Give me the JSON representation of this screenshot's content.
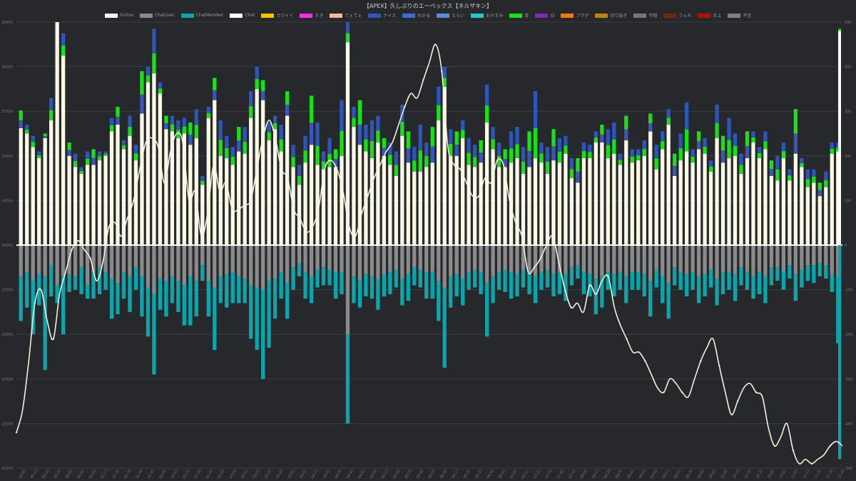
{
  "chart_data": {
    "type": "bar",
    "title": "【APEX】久しぶりのエーペックス【ネルザキン】",
    "legend_position": "top",
    "grid": true,
    "legend": [
      {
        "name": "Online",
        "color": "#fbf9e6"
      },
      {
        "name": "ChatUser",
        "color": "#8a8a8a"
      },
      {
        "name": "ChatMember",
        "color": "#0aa6ac"
      },
      {
        "name": "Chat",
        "color": "#ffffff"
      },
      {
        "name": "カワイイ",
        "color": "#f2c400"
      },
      {
        "name": "すき",
        "color": "#ff2de8"
      },
      {
        "name": "てぇてぇ",
        "color": "#f4b8a0"
      },
      {
        "name": "ナイス",
        "color": "#2e55b8"
      },
      {
        "name": "わかる",
        "color": "#3f6bd6"
      },
      {
        "name": "えらい",
        "color": "#5b8ed0"
      },
      {
        "name": "おやすみ",
        "color": "#26c8c6"
      },
      {
        "name": "草",
        "color": "#19e019"
      },
      {
        "name": "日",
        "color": "#7a2db0"
      },
      {
        "name": "フラグ",
        "color": "#f07a10"
      },
      {
        "name": "切り抜き",
        "color": "#b8860b"
      },
      {
        "name": "不穏",
        "color": "#777777"
      },
      {
        "name": "うんち",
        "color": "#6b2b10"
      },
      {
        "name": "炎上",
        "color": "#b01010"
      },
      {
        "name": "不信",
        "color": "#808080"
      }
    ],
    "left_axis": {
      "min": 21500,
      "max": 26500,
      "ticks": [
        21500,
        22000,
        22500,
        23000,
        23500,
        24000,
        24500,
        25000,
        25500,
        26000,
        26500
      ]
    },
    "right_axis": {
      "min": -500,
      "max": 500,
      "ticks": [
        -500,
        -400,
        -300,
        -200,
        -100,
        0,
        100,
        200,
        300,
        400,
        500
      ]
    },
    "x_tick_labels": [
      "00:01",
      "00:11",
      "00:21",
      "00:31",
      "00:41",
      "00:51",
      "01:01",
      "01:11",
      "01:21",
      "01:31",
      "01:41",
      "01:51",
      "02:01",
      "02:11",
      "02:21",
      "02:31",
      "02:41",
      "02:51",
      "03:01",
      "03:11",
      "03:21",
      "03:31",
      "03:41",
      "03:51",
      "04:01",
      "04:11",
      "04:21",
      "04:31",
      "04:41",
      "04:51",
      "05:01",
      "05:11",
      "05:21",
      "05:31",
      "05:41",
      "05:51",
      "06:01",
      "06:11",
      "06:21",
      "06:31",
      "06:41",
      "06:51",
      "07:01",
      "07:11",
      "07:21",
      "07:31",
      "07:41",
      "07:51",
      "08:01",
      "08:11",
      "08:21",
      "08:31",
      "08:41",
      "08:51",
      "09:01",
      "09:11",
      "09:21",
      "09:31",
      "09:41",
      "09:51",
      "10:01",
      "10:11",
      "10:21",
      "10:31",
      "10:41",
      "10:51",
      "11:01",
      "11:11",
      "11:21",
      "11:31",
      "11:41"
    ],
    "online_series": [
      21900,
      22150,
      22700,
      23350,
      23500,
      23150,
      22950,
      23450,
      23700,
      23950,
      24050,
      23950,
      23850,
      23600,
      23800,
      24200,
      24250,
      24100,
      24300,
      24500,
      24850,
      25150,
      25200,
      25100,
      24700,
      25050,
      25250,
      25150,
      24500,
      24600,
      24100,
      24350,
      24900,
      24600,
      24700,
      24400,
      24400,
      24450,
      24500,
      24850,
      25200,
      25400,
      25200,
      24850,
      24750,
      24400,
      24300,
      24150,
      24200,
      24400,
      24850,
      24950,
      24850,
      24600,
      24200,
      24100,
      24350,
      24550,
      24750,
      24900,
      25050,
      25150,
      25350,
      25550,
      25700,
      25650,
      25850,
      26050,
      26250,
      25950,
      25100,
      24900,
      24850,
      24700,
      24550,
      24550,
      24750,
      24700,
      24950,
      24900,
      24500,
      24250,
      24100,
      23700,
      23750,
      23850,
      24000,
      24100,
      23800,
      23500,
      23300,
      23350,
      23250,
      23550,
      23450,
      23600,
      23650,
      23300,
      23100,
      22950,
      22800,
      22800,
      22700,
      22550,
      22400,
      22350,
      22500,
      22450,
      22350,
      22300,
      22500,
      22700,
      22850,
      22950,
      22650,
      22350,
      22100,
      22250,
      22400,
      22450,
      22350,
      22300,
      21950,
      21750,
      21850,
      22000,
      21700,
      21550,
      21600,
      21550,
      21600,
      21650,
      21750,
      21800,
      21750
    ],
    "chat_values": [
      262,
      250,
      220,
      195,
      240,
      280,
      500,
      425,
      200,
      175,
      160,
      180,
      180,
      190,
      200,
      255,
      270,
      215,
      245,
      190,
      295,
      365,
      385,
      340,
      260,
      255,
      240,
      250,
      225,
      240,
      135,
      285,
      325,
      200,
      195,
      180,
      210,
      205,
      285,
      350,
      325,
      235,
      260,
      210,
      290,
      175,
      135,
      185,
      225,
      180,
      170,
      175,
      175,
      200,
      455,
      265,
      225,
      210,
      195,
      230,
      200,
      180,
      155,
      245,
      185,
      165,
      165,
      175,
      185,
      280,
      355,
      200,
      200,
      240,
      180,
      175,
      185,
      275,
      215,
      175,
      175,
      185,
      195,
      160,
      175,
      195,
      185,
      160,
      190,
      185,
      205,
      150,
      140,
      195,
      195,
      230,
      230,
      195,
      205,
      180,
      235,
      185,
      190,
      200,
      255,
      170,
      215,
      270,
      155,
      190,
      210,
      185,
      215,
      205,
      165,
      240,
      185,
      195,
      200,
      160,
      195,
      230,
      195,
      215,
      155,
      145,
      195,
      145,
      205,
      175,
      130,
      140,
      110,
      130,
      205,
      210
    ],
    "reaction_values": [
      40,
      20,
      25,
      15,
      10,
      50,
      20,
      50,
      30,
      30,
      15,
      30,
      35,
      20,
      10,
      30,
      40,
      20,
      45,
      35,
      95,
      35,
      100,
      25,
      30,
      35,
      40,
      35,
      50,
      65,
      20,
      25,
      50,
      80,
      50,
      40,
      55,
      60,
      60,
      50,
      45,
      40,
      30,
      60,
      55,
      50,
      45,
      60,
      110,
      95,
      40,
      65,
      40,
      125,
      60,
      45,
      100,
      60,
      85,
      60,
      40,
      50,
      55,
      70,
      70,
      55,
      105,
      55,
      80,
      75,
      45,
      60,
      55,
      40,
      60,
      50,
      50,
      85,
      50,
      55,
      40,
      70,
      70,
      60,
      80,
      150,
      45,
      60,
      70,
      55,
      40,
      45,
      55,
      35,
      30,
      25,
      40,
      65,
      70,
      25,
      55,
      30,
      25,
      35,
      40,
      55,
      40,
      35,
      50,
      60,
      110,
      30,
      40,
      35,
      25,
      75,
      60,
      90,
      50,
      45,
      60,
      25,
      25,
      40,
      35,
      55,
      35,
      25,
      100,
      20,
      40,
      30,
      30,
      35,
      25,
      20
    ],
    "chatuser_values": [
      -70,
      -60,
      -80,
      -65,
      -70,
      -45,
      -90,
      -70,
      -65,
      -70,
      -50,
      -90,
      -60,
      -50,
      -60,
      -75,
      -85,
      -60,
      -70,
      -50,
      -70,
      -95,
      -110,
      -75,
      -80,
      -70,
      -80,
      -90,
      -70,
      -80,
      -45,
      -80,
      -95,
      -70,
      -65,
      -60,
      -70,
      -75,
      -90,
      -95,
      -100,
      -80,
      -75,
      -60,
      -85,
      -50,
      -40,
      -60,
      -70,
      -55,
      -50,
      -55,
      -60,
      -60,
      -200,
      -70,
      -80,
      -65,
      -70,
      -75,
      -65,
      -60,
      -55,
      -75,
      -65,
      -50,
      -55,
      -60,
      -60,
      -80,
      -95,
      -70,
      -65,
      -75,
      -60,
      -55,
      -60,
      -85,
      -70,
      -60,
      -55,
      -60,
      -65,
      -55,
      -60,
      -70,
      -60,
      -55,
      -65,
      -60,
      -65,
      -50,
      -45,
      -60,
      -65,
      -75,
      -70,
      -60,
      -65,
      -60,
      -70,
      -60,
      -60,
      -65,
      -80,
      -55,
      -70,
      -85,
      -50,
      -60,
      -65,
      -60,
      -70,
      -65,
      -55,
      -75,
      -60,
      -60,
      -65,
      -50,
      -60,
      -70,
      -60,
      -70,
      -50,
      -50,
      -60,
      -45,
      -65,
      -55,
      -45,
      -45,
      -40,
      -45,
      -65,
      -70
    ],
    "chatmember_values": [
      -100,
      -80,
      -120,
      -70,
      -210,
      -70,
      -40,
      -130,
      -40,
      -30,
      -60,
      -30,
      -60,
      -60,
      -40,
      -90,
      -70,
      -60,
      -80,
      -50,
      -90,
      -110,
      -180,
      -70,
      -80,
      -60,
      -70,
      -90,
      -110,
      -80,
      -35,
      -80,
      -140,
      -60,
      -75,
      -70,
      -60,
      -55,
      -120,
      -140,
      -200,
      -150,
      -90,
      -60,
      -80,
      -50,
      -30,
      -60,
      -60,
      -40,
      -40,
      -35,
      -60,
      -50,
      -200,
      -60,
      -60,
      -50,
      -50,
      -70,
      -50,
      -50,
      -40,
      -60,
      -60,
      -40,
      -40,
      -60,
      -60,
      -90,
      -180,
      -70,
      -50,
      -60,
      -40,
      -40,
      -50,
      -120,
      -60,
      -40,
      -50,
      -60,
      -50,
      -40,
      -50,
      -60,
      -40,
      -40,
      -50,
      -50,
      -60,
      -40,
      -30,
      -50,
      -50,
      -80,
      -70,
      -40,
      -50,
      -40,
      -60,
      -40,
      -40,
      -50,
      -80,
      -40,
      -60,
      -80,
      -40,
      -40,
      -50,
      -40,
      -60,
      -50,
      -40,
      -60,
      -50,
      -40,
      -60,
      -40,
      -40,
      -50,
      -50,
      -60,
      -40,
      -30,
      -40,
      -30,
      -60,
      -40,
      -35,
      -40,
      -30,
      -30,
      -40,
      -150
    ]
  }
}
